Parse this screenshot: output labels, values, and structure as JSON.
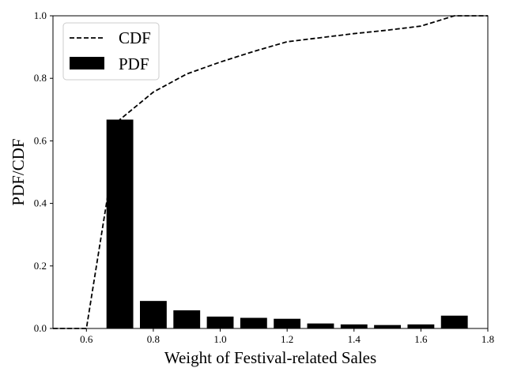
{
  "chart_data": {
    "type": "bar",
    "title": "",
    "xlabel": "Weight of Festival-related Sales",
    "ylabel": "PDF/CDF",
    "xlim": [
      0.5,
      1.8
    ],
    "ylim": [
      0.0,
      1.0
    ],
    "xticks": [
      "0.6",
      "0.8",
      "1.0",
      "1.2",
      "1.4",
      "1.6",
      "1.8"
    ],
    "yticks": [
      "0.0",
      "0.2",
      "0.4",
      "0.6",
      "0.8",
      "1.0"
    ],
    "grid": false,
    "legend_position": "top-left",
    "bar_width": 0.08,
    "series": [
      {
        "name": "PDF",
        "type": "bar",
        "color": "#000000",
        "x": [
          0.7,
          0.8,
          0.9,
          1.0,
          1.1,
          1.2,
          1.3,
          1.4,
          1.5,
          1.6,
          1.7
        ],
        "values": [
          0.668,
          0.088,
          0.058,
          0.038,
          0.034,
          0.031,
          0.016,
          0.013,
          0.011,
          0.013,
          0.041
        ]
      },
      {
        "name": "CDF",
        "type": "line",
        "style": "dashed",
        "color": "#000000",
        "x": [
          0.5,
          0.6,
          0.7,
          0.8,
          0.9,
          1.0,
          1.1,
          1.2,
          1.3,
          1.4,
          1.5,
          1.6,
          1.7,
          1.8
        ],
        "values": [
          0.0,
          0.0,
          0.668,
          0.756,
          0.814,
          0.852,
          0.886,
          0.917,
          0.93,
          0.943,
          0.954,
          0.967,
          1.0,
          1.0
        ]
      }
    ]
  }
}
